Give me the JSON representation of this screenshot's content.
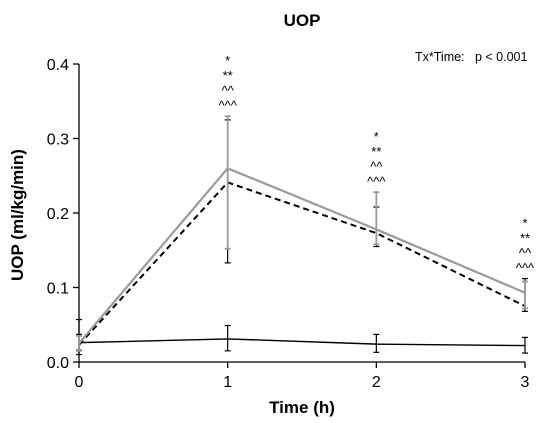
{
  "chart_data": {
    "type": "line",
    "title": "UOP",
    "xlabel": "Time (h)",
    "ylabel": "UOP (ml/kg/min)",
    "annotation": "Tx*Time:   p < 0.001",
    "x": [
      0,
      1,
      2,
      3
    ],
    "x_ticks": [
      "0",
      "1",
      "2",
      "3"
    ],
    "y_ticks": [
      "0.0",
      "0.1",
      "0.2",
      "0.3",
      "0.4"
    ],
    "xlim": [
      0,
      3
    ],
    "ylim": [
      0,
      0.4
    ],
    "grid": false,
    "series": [
      {
        "style": "solid-gray",
        "color": "#9a9a9a",
        "values": [
          0.025,
          0.26,
          0.178,
          0.093
        ],
        "error_upper": [
          0.035,
          0.33,
          0.228,
          0.108
        ],
        "error_lower": [
          0.015,
          0.152,
          0.158,
          0.072
        ]
      },
      {
        "style": "dashed-black",
        "color": "#000000",
        "values": [
          0.023,
          0.241,
          0.173,
          0.075
        ],
        "error_upper": [
          0.057,
          0.325,
          0.208,
          0.112
        ],
        "error_lower": [
          0.01,
          0.133,
          0.155,
          0.068
        ]
      },
      {
        "style": "solid-black",
        "color": "#000000",
        "values": [
          0.026,
          0.031,
          0.024,
          0.022
        ],
        "error_upper": [
          0.037,
          0.049,
          0.037,
          0.033
        ],
        "error_lower": [
          0.016,
          0.015,
          0.013,
          0.012
        ]
      }
    ],
    "significance_marks": [
      {
        "x": 1,
        "labels": [
          "*",
          "**",
          "^^",
          "^^^"
        ]
      },
      {
        "x": 2,
        "labels": [
          "*",
          "**",
          "^^",
          "^^^"
        ]
      },
      {
        "x": 3,
        "labels": [
          "*",
          "**",
          "^^",
          "^^^"
        ]
      }
    ]
  }
}
